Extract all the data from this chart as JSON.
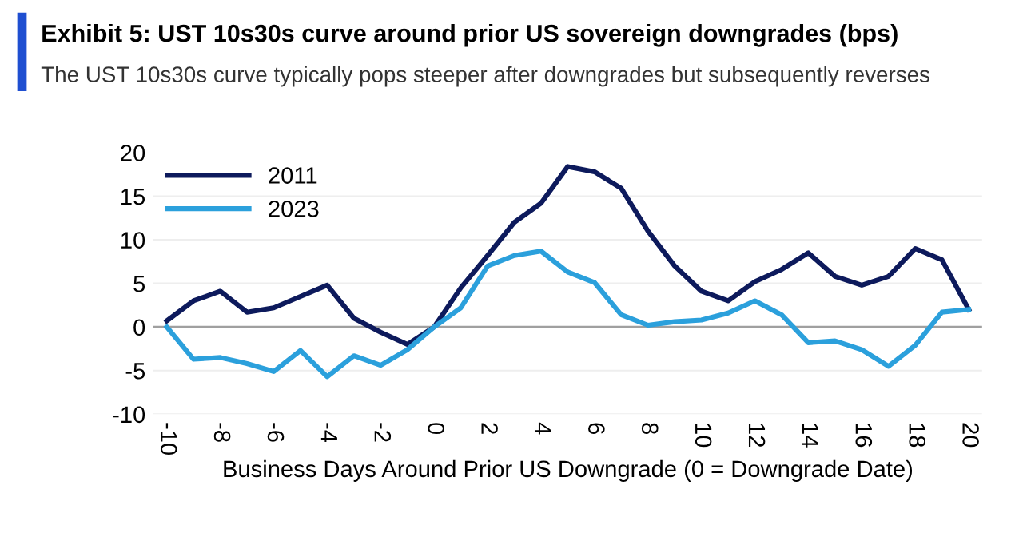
{
  "chart_data": {
    "type": "line",
    "title": "Exhibit 5: UST 10s30s curve around prior US sovereign downgrades (bps)",
    "subtitle": "The UST 10s30s curve typically pops steeper after downgrades but subsequently reverses",
    "xlabel": "Business Days Around Prior US Downgrade (0 = Downgrade Date)",
    "x": [
      -10,
      -9,
      -8,
      -7,
      -6,
      -5,
      -4,
      -3,
      -2,
      -1,
      0,
      1,
      2,
      3,
      4,
      5,
      6,
      7,
      8,
      9,
      10,
      11,
      12,
      13,
      14,
      15,
      16,
      17,
      18,
      19,
      20
    ],
    "series": [
      {
        "name": "2011",
        "color": "#0d1a5c",
        "values": [
          0.7,
          3,
          4.1,
          1.7,
          2.2,
          3.5,
          4.8,
          1,
          -0.6,
          -2,
          0,
          4.5,
          8.2,
          12,
          14.2,
          18.4,
          17.8,
          15.9,
          11,
          7,
          4.1,
          3,
          5.2,
          6.6,
          8.5,
          5.8,
          4.8,
          5.8,
          9,
          7.7,
          2
        ]
      },
      {
        "name": "2023",
        "color": "#2ba0dc",
        "values": [
          0,
          -3.7,
          -3.5,
          -4.2,
          -5.1,
          -2.7,
          -5.7,
          -3.3,
          -4.4,
          -2.6,
          0,
          2.2,
          7,
          8.2,
          8.7,
          6.3,
          5.1,
          1.4,
          0.2,
          0.6,
          0.8,
          1.6,
          3,
          1.4,
          -1.8,
          -1.6,
          -2.6,
          -4.5,
          -2.1,
          1.7,
          2
        ]
      }
    ],
    "xlim": [
      -10.5,
      20.5
    ],
    "xticks": [
      -10,
      -8,
      -6,
      -4,
      -2,
      0,
      2,
      4,
      6,
      8,
      10,
      12,
      14,
      16,
      18,
      20
    ],
    "ylim": [
      -10,
      20
    ],
    "yticks": [
      -10,
      -5,
      0,
      5,
      10,
      15,
      20
    ],
    "ref_lines": [
      {
        "axis": "y",
        "value": 0,
        "color": "#a0a0a0"
      }
    ],
    "grid": "y",
    "legend": "top left",
    "line_style": "solid",
    "marker": "none"
  }
}
